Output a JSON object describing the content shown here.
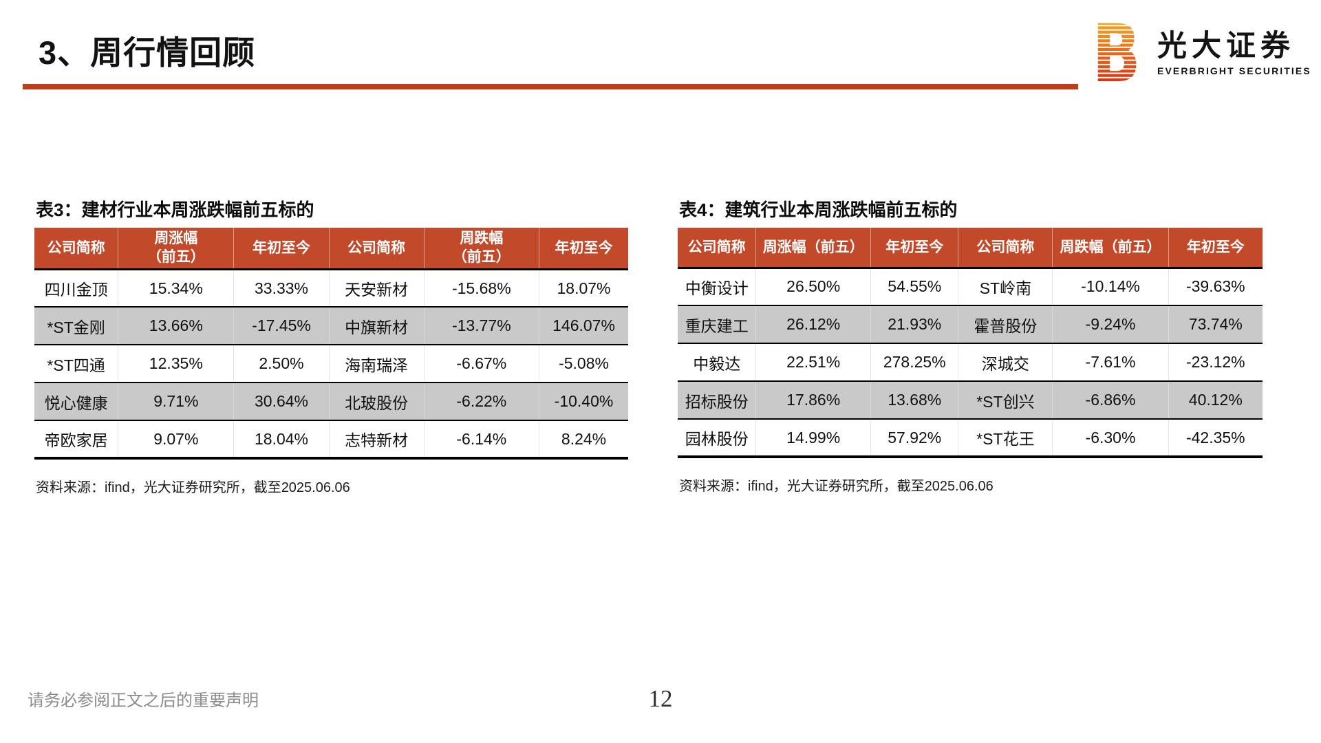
{
  "page": {
    "title": "3、周行情回顾",
    "footer_note": "请务必参阅正文之后的重要声明",
    "page_number": "12"
  },
  "logo": {
    "name_cn": "光大证券",
    "name_en": "EVERBRIGHT SECURITIES"
  },
  "colors": {
    "accent": "#C3492B",
    "rule": "#C23C1C",
    "row_alt": "#C9C9C9",
    "logo_gradient_top": "#F7A41B",
    "logo_gradient_bottom": "#E2320F"
  },
  "tables": [
    {
      "title": "表3：建材行业本周涨跌幅前五标的",
      "headers": [
        "公司简称",
        "周涨幅\n（前五）",
        "年初至今",
        "公司简称",
        "周跌幅\n（前五）",
        "年初至今"
      ],
      "rows": [
        [
          "四川金顶",
          "15.34%",
          "33.33%",
          "天安新材",
          "-15.68%",
          "18.07%"
        ],
        [
          "*ST金刚",
          "13.66%",
          "-17.45%",
          "中旗新材",
          "-13.77%",
          "146.07%"
        ],
        [
          "*ST四通",
          "12.35%",
          "2.50%",
          "海南瑞泽",
          "-6.67%",
          "-5.08%"
        ],
        [
          "悦心健康",
          "9.71%",
          "30.64%",
          "北玻股份",
          "-6.22%",
          "-10.40%"
        ],
        [
          "帝欧家居",
          "9.07%",
          "18.04%",
          "志特新材",
          "-6.14%",
          "8.24%"
        ]
      ],
      "source": "资料来源：ifind，光大证券研究所，截至2025.06.06"
    },
    {
      "title": "表4：建筑行业本周涨跌幅前五标的",
      "headers": [
        "公司简称",
        "周涨幅（前五）",
        "年初至今",
        "公司简称",
        "周跌幅（前五）",
        "年初至今"
      ],
      "rows": [
        [
          "中衡设计",
          "26.50%",
          "54.55%",
          "ST岭南",
          "-10.14%",
          "-39.63%"
        ],
        [
          "重庆建工",
          "26.12%",
          "21.93%",
          "霍普股份",
          "-9.24%",
          "73.74%"
        ],
        [
          "中毅达",
          "22.51%",
          "278.25%",
          "深城交",
          "-7.61%",
          "-23.12%"
        ],
        [
          "招标股份",
          "17.86%",
          "13.68%",
          "*ST创兴",
          "-6.86%",
          "40.12%"
        ],
        [
          "园林股份",
          "14.99%",
          "57.92%",
          "*ST花王",
          "-6.30%",
          "-42.35%"
        ]
      ],
      "source": "资料来源：ifind，光大证券研究所，截至2025.06.06"
    }
  ]
}
